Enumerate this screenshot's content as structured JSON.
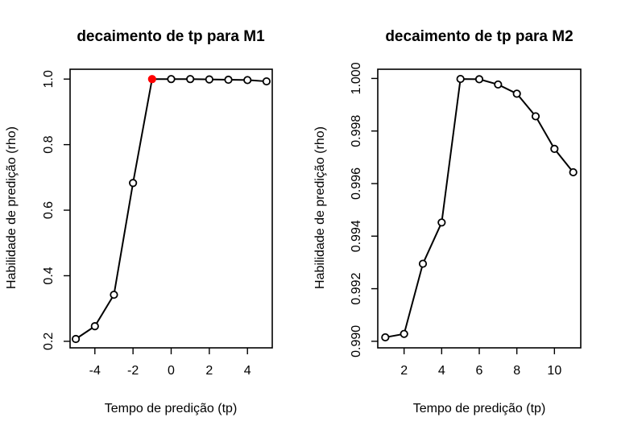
{
  "chart_data": [
    {
      "type": "line",
      "title": "decaimento de tp para M1",
      "xlabel": "Tempo de predição (tp)",
      "ylabel": "Habilidade de predição (rho)",
      "xticks": [
        -4,
        -2,
        0,
        2,
        4
      ],
      "yticks": [
        0.2,
        0.4,
        0.6,
        0.8,
        1.0
      ],
      "ytick_labels": [
        "0.2",
        "0.4",
        "0.6",
        "0.8",
        "1.0"
      ],
      "xlim": [
        -5.3,
        5.3
      ],
      "ylim": [
        0.18,
        1.03
      ],
      "series": [
        {
          "x": [
            -5,
            -4,
            -3,
            -2,
            -1,
            0,
            1,
            2,
            3,
            4,
            5
          ],
          "values": [
            0.207,
            0.246,
            0.342,
            0.683,
            1.0,
            1.0,
            1.0,
            0.999,
            0.998,
            0.997,
            0.993
          ],
          "highlight_index": 4,
          "highlight_color": "#ff0000"
        }
      ],
      "marker": "open-circle",
      "grid": false
    },
    {
      "type": "line",
      "title": "decaimento de tp para M2",
      "xlabel": "Tempo de predição (tp)",
      "ylabel": "Habilidade de predição (rho)",
      "xticks": [
        2,
        4,
        6,
        8,
        10
      ],
      "yticks": [
        0.99,
        0.992,
        0.994,
        0.996,
        0.998,
        1.0
      ],
      "ytick_labels": [
        "0.990",
        "0.992",
        "0.994",
        "0.996",
        "0.998",
        "1.000"
      ],
      "xlim": [
        0.6,
        11.4
      ],
      "ylim": [
        0.98975,
        1.00035
      ],
      "series": [
        {
          "x": [
            1,
            2,
            3,
            4,
            5,
            6,
            7,
            8,
            9,
            10,
            11
          ],
          "values": [
            0.99015,
            0.99028,
            0.99295,
            0.99452,
            0.99998,
            0.99997,
            0.99977,
            0.99942,
            0.99856,
            0.99732,
            0.99643
          ]
        }
      ],
      "marker": "open-circle",
      "grid": false
    }
  ]
}
